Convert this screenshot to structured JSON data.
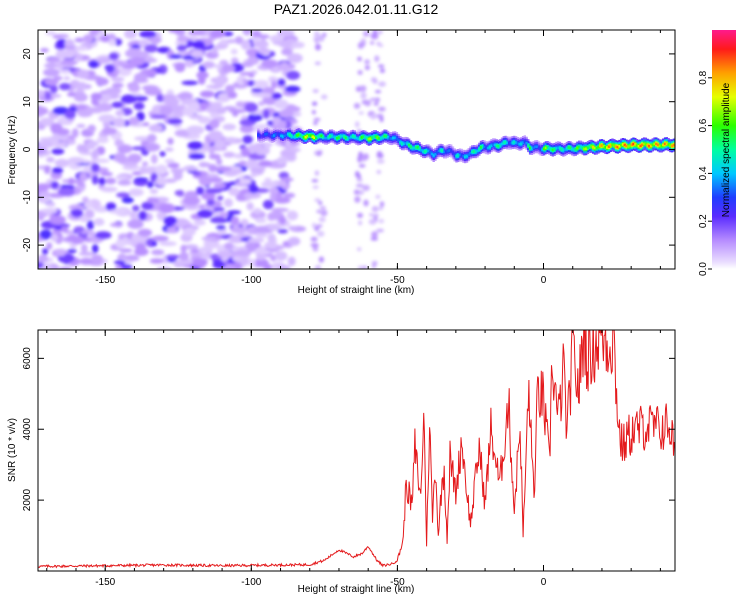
{
  "title": "PAZ1.2026.042.01.11.G12",
  "chart_data": [
    {
      "type": "heatmap",
      "name": "spectrogram",
      "xlabel": "Height of straight line (km)",
      "ylabel": "Frequency (Hz)",
      "xlim": [
        -173,
        45
      ],
      "ylim": [
        -25,
        25
      ],
      "xticks": [
        -150,
        -100,
        -50,
        0
      ],
      "yticks": [
        20,
        10,
        0,
        -10,
        -20
      ],
      "colorbar": {
        "label": "Normalized spectral amplitude",
        "ticks": [
          0.0,
          0.2,
          0.4,
          0.6,
          0.8
        ],
        "range": [
          0,
          1
        ]
      },
      "signal_track": {
        "heights_km": [
          -98,
          -90,
          -80,
          -75,
          -70,
          -65,
          -60,
          -55,
          -52,
          -48,
          -45,
          -40,
          -38,
          -35,
          -32,
          -30,
          -28,
          -25,
          -22,
          -20,
          -17,
          -15,
          -12,
          -10,
          -7,
          -5,
          -2,
          0,
          5,
          10,
          20,
          30,
          45
        ],
        "frequency_hz": [
          3,
          3,
          2.7,
          2.6,
          2.6,
          2.5,
          2.4,
          2.6,
          2.5,
          1.2,
          0.5,
          -0.5,
          -1,
          -0.2,
          -0.5,
          -1.2,
          -1.5,
          -0.8,
          0.3,
          0.5,
          0.8,
          1,
          1.6,
          1.2,
          1.5,
          0.5,
          0.3,
          0.2,
          0.1,
          0.2,
          0.6,
          0.9,
          1.0
        ],
        "amplitude": [
          0.3,
          0.4,
          0.8,
          0.5,
          0.6,
          0.5,
          0.7,
          0.6,
          0.4,
          0.5,
          0.6,
          0.5,
          0.4,
          0.5,
          0.3,
          0.5,
          0.4,
          0.5,
          0.6,
          0.4,
          0.5,
          0.6,
          0.4,
          0.5,
          0.4,
          0.6,
          0.3,
          0.7,
          0.5,
          0.6,
          0.85,
          0.9,
          0.85
        ]
      },
      "noise_region_km": [
        -173,
        -90
      ]
    },
    {
      "type": "line",
      "name": "snr",
      "xlabel": "Height of straight line (km)",
      "ylabel": "SNR (10 * v/v)",
      "xlim": [
        -173,
        45
      ],
      "ylim": [
        0,
        6800
      ],
      "xticks": [
        -150,
        -100,
        -50,
        0
      ],
      "yticks": [
        2000,
        4000,
        6000
      ],
      "color": "#e41a1c",
      "series": [
        {
          "name": "SNR",
          "x": [
            -173,
            -150,
            -130,
            -110,
            -100,
            -90,
            -80,
            -75,
            -70,
            -65,
            -62,
            -60,
            -57,
            -55,
            -52,
            -50,
            -48,
            -47,
            -45,
            -44,
            -42,
            -41,
            -40,
            -39,
            -38,
            -37,
            -36,
            -35,
            -34,
            -33,
            -32,
            -30,
            -28,
            -25,
            -22,
            -20,
            -18,
            -15,
            -12,
            -10,
            -8,
            -7,
            -5,
            -4,
            -3,
            -2,
            0,
            2,
            3,
            5,
            7,
            8,
            10,
            12,
            14,
            15,
            17,
            20,
            22,
            24,
            25,
            26,
            27,
            30,
            35,
            40,
            43,
            45
          ],
          "values": [
            130,
            150,
            170,
            150,
            160,
            170,
            180,
            300,
            600,
            400,
            500,
            700,
            300,
            150,
            200,
            300,
            900,
            2500,
            1800,
            3500,
            2000,
            4600,
            800,
            4200,
            1500,
            3000,
            1000,
            2200,
            2900,
            900,
            3200,
            2200,
            3700,
            1300,
            3500,
            1900,
            4000,
            2400,
            4800,
            1700,
            4200,
            1000,
            5200,
            3200,
            2200,
            5100,
            4800,
            3000,
            6000,
            4200,
            5700,
            3800,
            6200,
            5100,
            6800,
            6000,
            6300,
            6700,
            6400,
            6600,
            5000,
            3900,
            3500,
            3900,
            4100,
            4000,
            4150,
            3400
          ]
        }
      ]
    }
  ]
}
